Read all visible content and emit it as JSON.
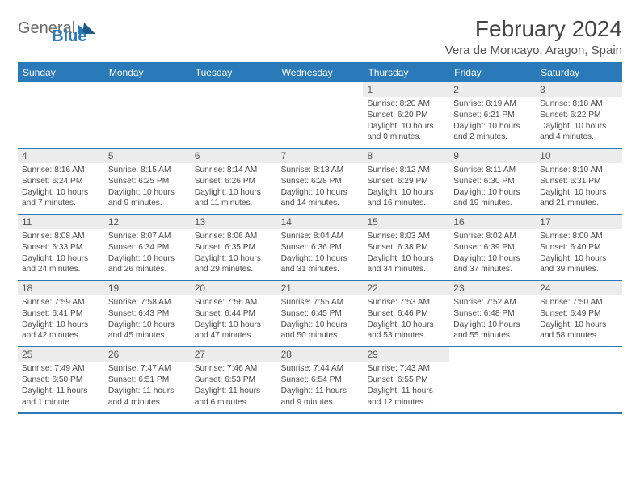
{
  "brand": {
    "part1": "General",
    "part2": "Blue"
  },
  "title": "February 2024",
  "location": "Vera de Moncayo, Aragon, Spain",
  "colors": {
    "accent": "#2a7ab9",
    "grid_row_bg": "#ececec",
    "text": "#3a3a3a",
    "background": "#ffffff"
  },
  "day_headers": [
    "Sunday",
    "Monday",
    "Tuesday",
    "Wednesday",
    "Thursday",
    "Friday",
    "Saturday"
  ],
  "weeks": [
    [
      null,
      null,
      null,
      null,
      {
        "n": "1",
        "sr": "Sunrise: 8:20 AM",
        "ss": "Sunset: 6:20 PM",
        "dl": "Daylight: 10 hours and 0 minutes."
      },
      {
        "n": "2",
        "sr": "Sunrise: 8:19 AM",
        "ss": "Sunset: 6:21 PM",
        "dl": "Daylight: 10 hours and 2 minutes."
      },
      {
        "n": "3",
        "sr": "Sunrise: 8:18 AM",
        "ss": "Sunset: 6:22 PM",
        "dl": "Daylight: 10 hours and 4 minutes."
      }
    ],
    [
      {
        "n": "4",
        "sr": "Sunrise: 8:16 AM",
        "ss": "Sunset: 6:24 PM",
        "dl": "Daylight: 10 hours and 7 minutes."
      },
      {
        "n": "5",
        "sr": "Sunrise: 8:15 AM",
        "ss": "Sunset: 6:25 PM",
        "dl": "Daylight: 10 hours and 9 minutes."
      },
      {
        "n": "6",
        "sr": "Sunrise: 8:14 AM",
        "ss": "Sunset: 6:26 PM",
        "dl": "Daylight: 10 hours and 11 minutes."
      },
      {
        "n": "7",
        "sr": "Sunrise: 8:13 AM",
        "ss": "Sunset: 6:28 PM",
        "dl": "Daylight: 10 hours and 14 minutes."
      },
      {
        "n": "8",
        "sr": "Sunrise: 8:12 AM",
        "ss": "Sunset: 6:29 PM",
        "dl": "Daylight: 10 hours and 16 minutes."
      },
      {
        "n": "9",
        "sr": "Sunrise: 8:11 AM",
        "ss": "Sunset: 6:30 PM",
        "dl": "Daylight: 10 hours and 19 minutes."
      },
      {
        "n": "10",
        "sr": "Sunrise: 8:10 AM",
        "ss": "Sunset: 6:31 PM",
        "dl": "Daylight: 10 hours and 21 minutes."
      }
    ],
    [
      {
        "n": "11",
        "sr": "Sunrise: 8:08 AM",
        "ss": "Sunset: 6:33 PM",
        "dl": "Daylight: 10 hours and 24 minutes."
      },
      {
        "n": "12",
        "sr": "Sunrise: 8:07 AM",
        "ss": "Sunset: 6:34 PM",
        "dl": "Daylight: 10 hours and 26 minutes."
      },
      {
        "n": "13",
        "sr": "Sunrise: 8:06 AM",
        "ss": "Sunset: 6:35 PM",
        "dl": "Daylight: 10 hours and 29 minutes."
      },
      {
        "n": "14",
        "sr": "Sunrise: 8:04 AM",
        "ss": "Sunset: 6:36 PM",
        "dl": "Daylight: 10 hours and 31 minutes."
      },
      {
        "n": "15",
        "sr": "Sunrise: 8:03 AM",
        "ss": "Sunset: 6:38 PM",
        "dl": "Daylight: 10 hours and 34 minutes."
      },
      {
        "n": "16",
        "sr": "Sunrise: 8:02 AM",
        "ss": "Sunset: 6:39 PM",
        "dl": "Daylight: 10 hours and 37 minutes."
      },
      {
        "n": "17",
        "sr": "Sunrise: 8:00 AM",
        "ss": "Sunset: 6:40 PM",
        "dl": "Daylight: 10 hours and 39 minutes."
      }
    ],
    [
      {
        "n": "18",
        "sr": "Sunrise: 7:59 AM",
        "ss": "Sunset: 6:41 PM",
        "dl": "Daylight: 10 hours and 42 minutes."
      },
      {
        "n": "19",
        "sr": "Sunrise: 7:58 AM",
        "ss": "Sunset: 6:43 PM",
        "dl": "Daylight: 10 hours and 45 minutes."
      },
      {
        "n": "20",
        "sr": "Sunrise: 7:56 AM",
        "ss": "Sunset: 6:44 PM",
        "dl": "Daylight: 10 hours and 47 minutes."
      },
      {
        "n": "21",
        "sr": "Sunrise: 7:55 AM",
        "ss": "Sunset: 6:45 PM",
        "dl": "Daylight: 10 hours and 50 minutes."
      },
      {
        "n": "22",
        "sr": "Sunrise: 7:53 AM",
        "ss": "Sunset: 6:46 PM",
        "dl": "Daylight: 10 hours and 53 minutes."
      },
      {
        "n": "23",
        "sr": "Sunrise: 7:52 AM",
        "ss": "Sunset: 6:48 PM",
        "dl": "Daylight: 10 hours and 55 minutes."
      },
      {
        "n": "24",
        "sr": "Sunrise: 7:50 AM",
        "ss": "Sunset: 6:49 PM",
        "dl": "Daylight: 10 hours and 58 minutes."
      }
    ],
    [
      {
        "n": "25",
        "sr": "Sunrise: 7:49 AM",
        "ss": "Sunset: 6:50 PM",
        "dl": "Daylight: 11 hours and 1 minute."
      },
      {
        "n": "26",
        "sr": "Sunrise: 7:47 AM",
        "ss": "Sunset: 6:51 PM",
        "dl": "Daylight: 11 hours and 4 minutes."
      },
      {
        "n": "27",
        "sr": "Sunrise: 7:46 AM",
        "ss": "Sunset: 6:53 PM",
        "dl": "Daylight: 11 hours and 6 minutes."
      },
      {
        "n": "28",
        "sr": "Sunrise: 7:44 AM",
        "ss": "Sunset: 6:54 PM",
        "dl": "Daylight: 11 hours and 9 minutes."
      },
      {
        "n": "29",
        "sr": "Sunrise: 7:43 AM",
        "ss": "Sunset: 6:55 PM",
        "dl": "Daylight: 11 hours and 12 minutes."
      },
      null,
      null
    ]
  ]
}
